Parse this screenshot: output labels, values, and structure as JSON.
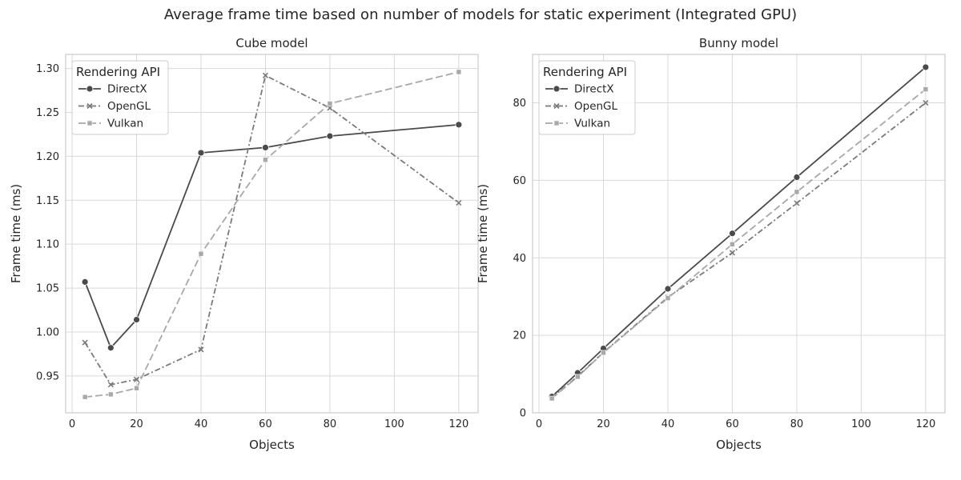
{
  "figure": {
    "title": "Average frame time based on number of models for static experiment (Integrated GPU)"
  },
  "series_styles": {
    "DirectX": {
      "color": "#4a4a4a",
      "dash": "",
      "marker": "circle"
    },
    "OpenGL": {
      "color": "#7a7a7a",
      "dash": "7 3 2 3",
      "marker": "x"
    },
    "Vulkan": {
      "color": "#a8a8a8",
      "dash": "9 4",
      "marker": "square"
    }
  },
  "chart_data": [
    {
      "type": "line",
      "title": "Cube model",
      "xlabel": "Objects",
      "ylabel": "Frame time (ms)",
      "xlim": [
        -2,
        126
      ],
      "ylim": [
        0.908,
        1.316
      ],
      "xticks": [
        0,
        20,
        40,
        60,
        80,
        100,
        120
      ],
      "xtick_labels": [
        "0",
        "20",
        "40",
        "60",
        "80",
        "100",
        "120"
      ],
      "yticks": [
        0.95,
        1.0,
        1.05,
        1.1,
        1.15,
        1.2,
        1.25,
        1.3
      ],
      "ytick_labels": [
        "0.95",
        "1.00",
        "1.05",
        "1.10",
        "1.15",
        "1.20",
        "1.25",
        "1.30"
      ],
      "grid": true,
      "legend": {
        "title": "Rendering API",
        "placement": "top-left"
      },
      "x": [
        4,
        12,
        20,
        40,
        60,
        80,
        120
      ],
      "series": [
        {
          "name": "DirectX",
          "values": [
            1.057,
            0.982,
            1.014,
            1.204,
            1.21,
            1.223,
            1.236
          ]
        },
        {
          "name": "OpenGL",
          "values": [
            0.988,
            0.94,
            0.946,
            0.98,
            1.292,
            1.255,
            1.147
          ]
        },
        {
          "name": "Vulkan",
          "values": [
            0.926,
            0.929,
            0.936,
            1.089,
            1.196,
            1.26,
            1.296
          ]
        }
      ]
    },
    {
      "type": "line",
      "title": "Bunny model",
      "xlabel": "Objects",
      "ylabel": "Frame time (ms)",
      "xlim": [
        -2,
        126
      ],
      "ylim": [
        0,
        92.5
      ],
      "xticks": [
        0,
        20,
        40,
        60,
        80,
        100,
        120
      ],
      "xtick_labels": [
        "0",
        "20",
        "40",
        "60",
        "80",
        "100",
        "120"
      ],
      "yticks": [
        0,
        20,
        40,
        60,
        80
      ],
      "ytick_labels": [
        "0",
        "20",
        "40",
        "60",
        "80"
      ],
      "grid": true,
      "legend": {
        "title": "Rendering API",
        "placement": "top-left"
      },
      "x": [
        4,
        12,
        20,
        40,
        60,
        80,
        120
      ],
      "series": [
        {
          "name": "DirectX",
          "values": [
            4.2,
            10.3,
            16.6,
            32.0,
            46.3,
            60.8,
            89.2
          ]
        },
        {
          "name": "OpenGL",
          "values": [
            3.9,
            9.4,
            15.6,
            29.8,
            41.3,
            54.1,
            80.0
          ]
        },
        {
          "name": "Vulkan",
          "values": [
            3.7,
            9.3,
            15.5,
            29.6,
            43.5,
            57.0,
            83.5
          ]
        }
      ]
    }
  ]
}
